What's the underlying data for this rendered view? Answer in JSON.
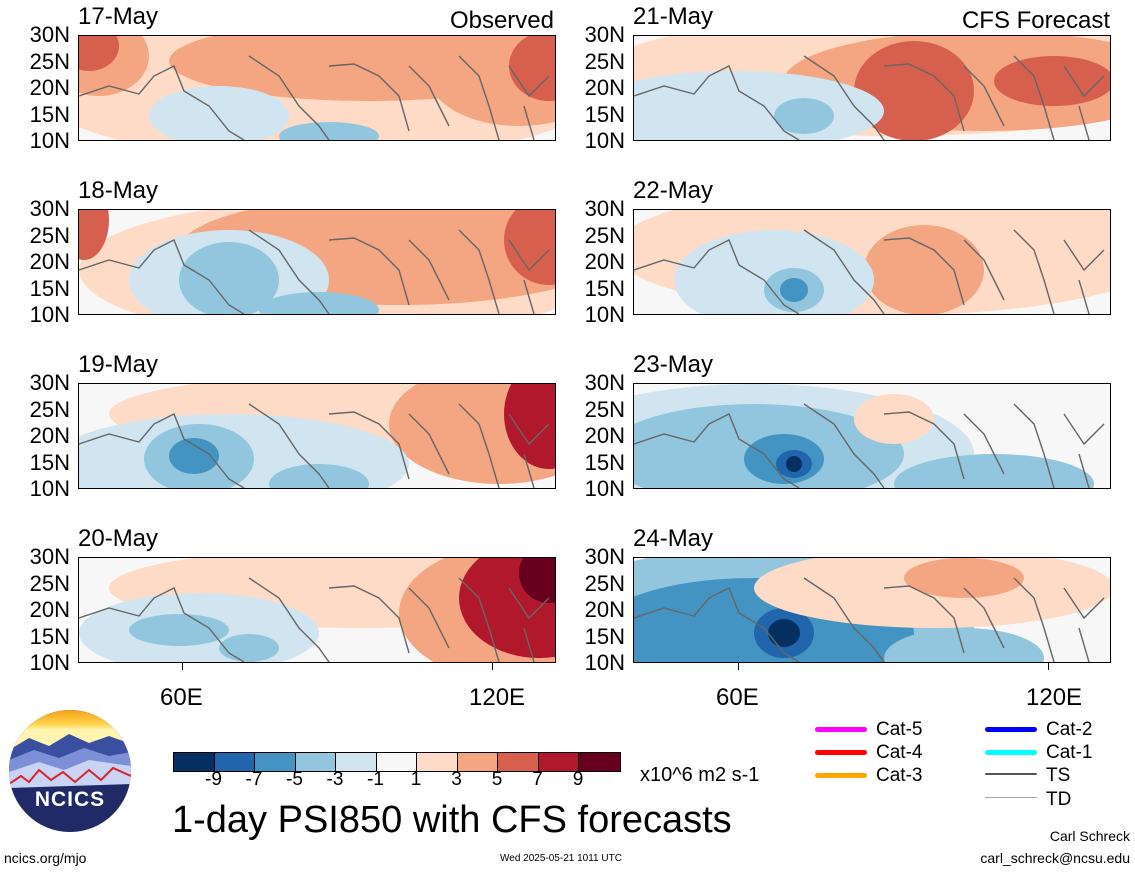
{
  "panels_left": [
    "17-May",
    "18-May",
    "19-May",
    "20-May"
  ],
  "panels_right": [
    "21-May",
    "22-May",
    "23-May",
    "24-May"
  ],
  "header": {
    "left": "Observed",
    "right": "CFS Forecast"
  },
  "lat_labels": [
    "30N",
    "25N",
    "20N",
    "15N",
    "10N"
  ],
  "lon_labels": [
    "60E",
    "120E"
  ],
  "colorbar": {
    "colors": [
      "#053061",
      "#2166ac",
      "#4393c3",
      "#92c5de",
      "#d1e5f0",
      "#f7f7f7",
      "#fddbc7",
      "#f4a582",
      "#d6604d",
      "#b2182b",
      "#67001f"
    ],
    "ticks": [
      "-9",
      "-7",
      "-5",
      "-3",
      "-1",
      "1",
      "3",
      "5",
      "7",
      "9"
    ],
    "units": "x10^6 m2 s-1"
  },
  "title": "1-day PSI850 with CFS forecasts",
  "legend": [
    {
      "label": "Cat-5",
      "color": "#ff00ff"
    },
    {
      "label": "Cat-4",
      "color": "#ff0000"
    },
    {
      "label": "Cat-3",
      "color": "#ffa500"
    },
    {
      "label": "Cat-2",
      "color": "#0000ff"
    },
    {
      "label": "Cat-1",
      "color": "#00ffff"
    },
    {
      "label": "TS",
      "color": "#555555"
    },
    {
      "label": "TD",
      "color": "#aaaaaa"
    }
  ],
  "logo_text": "NCICS",
  "footer": {
    "url": "ncics.org/mjo",
    "timestamp": "Wed 2025-05-21 1011 UTC",
    "author": "Carl Schreck",
    "email": "carl_schreck@ncsu.edu"
  }
}
